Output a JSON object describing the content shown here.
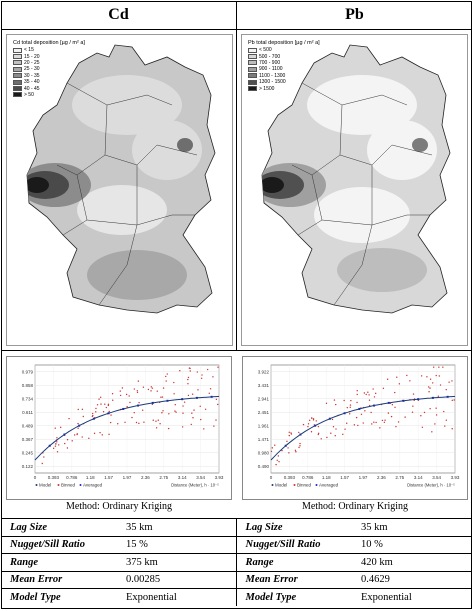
{
  "headers": {
    "cd": "Cd",
    "pb": "Pb"
  },
  "cd_map": {
    "legend_title": "Cd total deposition [µg / m² a]",
    "legend": [
      {
        "label": "< 15",
        "color": "#f2f2f2"
      },
      {
        "label": "15 - 20",
        "color": "#dcdcdc"
      },
      {
        "label": "20 - 25",
        "color": "#c2c2c2"
      },
      {
        "label": "25 - 30",
        "color": "#a8a8a8"
      },
      {
        "label": "30 - 35",
        "color": "#8c8c8c"
      },
      {
        "label": "35 - 40",
        "color": "#6e6e6e"
      },
      {
        "label": "40 - 45",
        "color": "#4a4a4a"
      },
      {
        "label": "> 50",
        "color": "#1a1a1a"
      }
    ]
  },
  "pb_map": {
    "legend_title": "Pb total deposition [µg / m² a]",
    "legend": [
      {
        "label": "< 500",
        "color": "#f4f4f4"
      },
      {
        "label": "500 - 700",
        "color": "#d8d8d8"
      },
      {
        "label": "700 - 900",
        "color": "#bdbdbd"
      },
      {
        "label": "900 - 1100",
        "color": "#a0a0a0"
      },
      {
        "label": "1100 - 1300",
        "color": "#7c7c7c"
      },
      {
        "label": "1300 - 1500",
        "color": "#505050"
      },
      {
        "label": "> 1500",
        "color": "#1a1a1a"
      }
    ]
  },
  "variograms": [
    {
      "y_ticks": [
        "0.979",
        "0.858",
        "0.734",
        "0.611",
        "0.489",
        "0.367",
        "0.245",
        "0.122"
      ],
      "x_ticks": [
        "0",
        "0.393",
        "0.786",
        "1.18",
        "1.57",
        "1.97",
        "2.36",
        "2.75",
        "3.14",
        "3.54",
        "3.93"
      ],
      "legend": [
        "Model",
        "Binned",
        "Averaged"
      ],
      "x_caption": "Distance (Meter), h · 10⁻⁵",
      "method": "Method: Ordinary Kriging"
    },
    {
      "y_ticks": [
        "3.922",
        "3.431",
        "2.941",
        "2.451",
        "1.961",
        "1.471",
        "0.980",
        "0.490"
      ],
      "x_ticks": [
        "0",
        "0.393",
        "0.786",
        "1.18",
        "1.57",
        "1.97",
        "2.36",
        "2.75",
        "3.14",
        "3.54",
        "3.93"
      ],
      "legend": [
        "Model",
        "Binned",
        "Averaged"
      ],
      "x_caption": "Distance (Meter), h · 10⁻⁵",
      "method": "Method: Ordinary Kriging"
    }
  ],
  "params": [
    {
      "label": "Lag Size",
      "cd": "35 km",
      "pb": "35 km"
    },
    {
      "label": "Nugget/Sill Ratio",
      "cd": "15 %",
      "pb": "10 %"
    },
    {
      "label": "Range",
      "cd": "375 km",
      "pb": "420 km"
    },
    {
      "label": "Mean Error",
      "cd": "0.00285",
      "pb": "0.4629"
    },
    {
      "label": "Model Type",
      "cd": "Exponential",
      "pb": "Exponential"
    }
  ]
}
